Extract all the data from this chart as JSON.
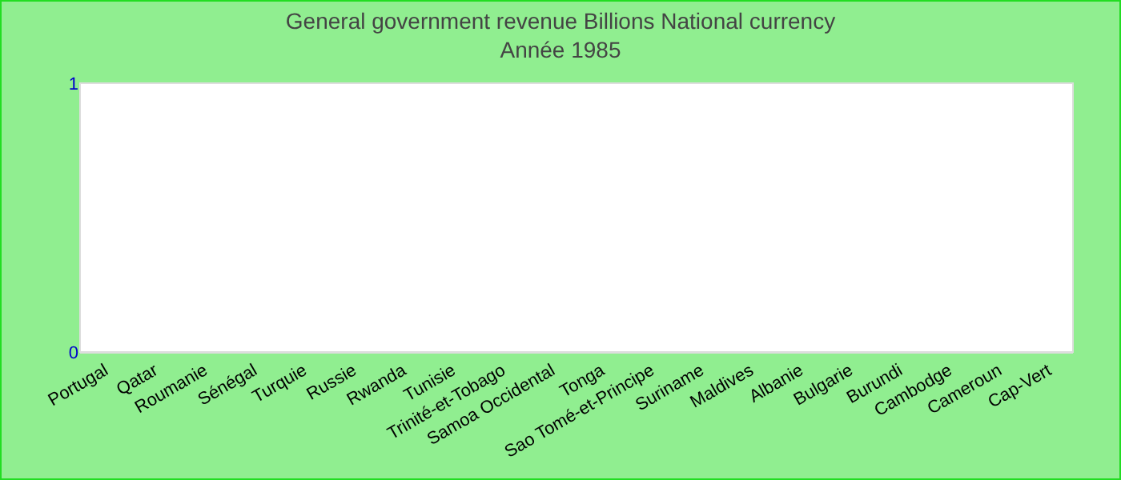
{
  "chart_data": {
    "type": "bar",
    "title": "General government revenue Billions National currency",
    "subtitle": "Année 1985",
    "categories": [
      "Portugal",
      "Qatar",
      "Roumanie",
      "Sénégal",
      "Turquie",
      "Russie",
      "Rwanda",
      "Tunisie",
      "Trinité-et-Tobago",
      "Samoa Occidental",
      "Tonga",
      "Sao Tomé-et-Principe",
      "Suriname",
      "Maldives",
      "Albanie",
      "Bulgarie",
      "Burundi",
      "Cambodge",
      "Cameroun",
      "Cap-Vert"
    ],
    "values": [
      null,
      null,
      null,
      null,
      null,
      null,
      null,
      null,
      null,
      null,
      null,
      null,
      null,
      null,
      null,
      null,
      null,
      null,
      null,
      null
    ],
    "ylim": [
      0,
      1
    ],
    "yticks": [
      0,
      1
    ]
  }
}
